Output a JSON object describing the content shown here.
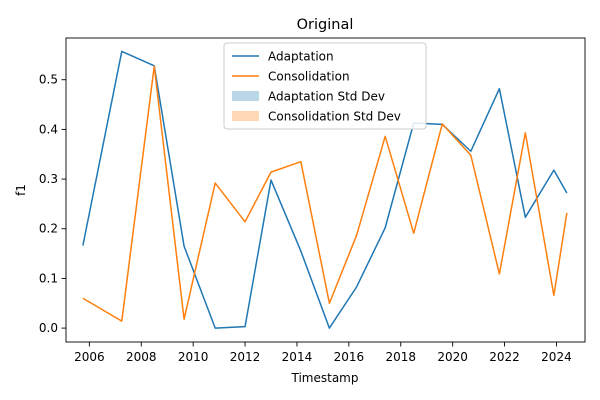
{
  "chart_data": {
    "type": "line",
    "title": "Original",
    "xlabel": "Timestamp",
    "ylabel": "f1",
    "xlim": [
      2005.1,
      2025.1
    ],
    "ylim": [
      -0.028,
      0.584
    ],
    "x_ticks": [
      2006,
      2008,
      2010,
      2012,
      2014,
      2016,
      2018,
      2020,
      2022,
      2024
    ],
    "y_ticks": [
      0.0,
      0.1,
      0.2,
      0.3,
      0.4,
      0.5
    ],
    "y_tick_labels": [
      "0.0",
      "0.1",
      "0.2",
      "0.3",
      "0.4",
      "0.5"
    ],
    "grid": false,
    "legend_position": "top-center",
    "series": [
      {
        "name": "Adaptation",
        "color": "#1f77b4",
        "x": [
          2005.75,
          2007.25,
          2008.5,
          2009.65,
          2010.85,
          2012.0,
          2013.0,
          2014.15,
          2015.25,
          2016.3,
          2017.4,
          2018.5,
          2019.6,
          2020.7,
          2021.8,
          2022.8,
          2023.9,
          2024.4
        ],
        "values": [
          0.166,
          0.557,
          0.528,
          0.165,
          0.0,
          0.003,
          0.298,
          0.155,
          0.0,
          0.083,
          0.202,
          0.413,
          0.41,
          0.356,
          0.482,
          0.223,
          0.318,
          0.272
        ]
      },
      {
        "name": "Consolidation",
        "color": "#ff7f0e",
        "x": [
          2005.75,
          2007.25,
          2008.5,
          2009.65,
          2010.85,
          2012.0,
          2013.0,
          2014.15,
          2015.25,
          2016.3,
          2017.4,
          2018.5,
          2019.6,
          2020.7,
          2021.8,
          2022.8,
          2023.9,
          2024.4
        ],
        "values": [
          0.06,
          0.014,
          0.527,
          0.018,
          0.292,
          0.214,
          0.314,
          0.335,
          0.05,
          0.187,
          0.386,
          0.191,
          0.411,
          0.348,
          0.109,
          0.393,
          0.066,
          0.232
        ]
      }
    ],
    "bands": [
      {
        "name": "Adaptation Std Dev",
        "color": "#1f77b4",
        "opacity": 0.3
      },
      {
        "name": "Consolidation Std Dev",
        "color": "#ff7f0e",
        "opacity": 0.3
      }
    ]
  }
}
